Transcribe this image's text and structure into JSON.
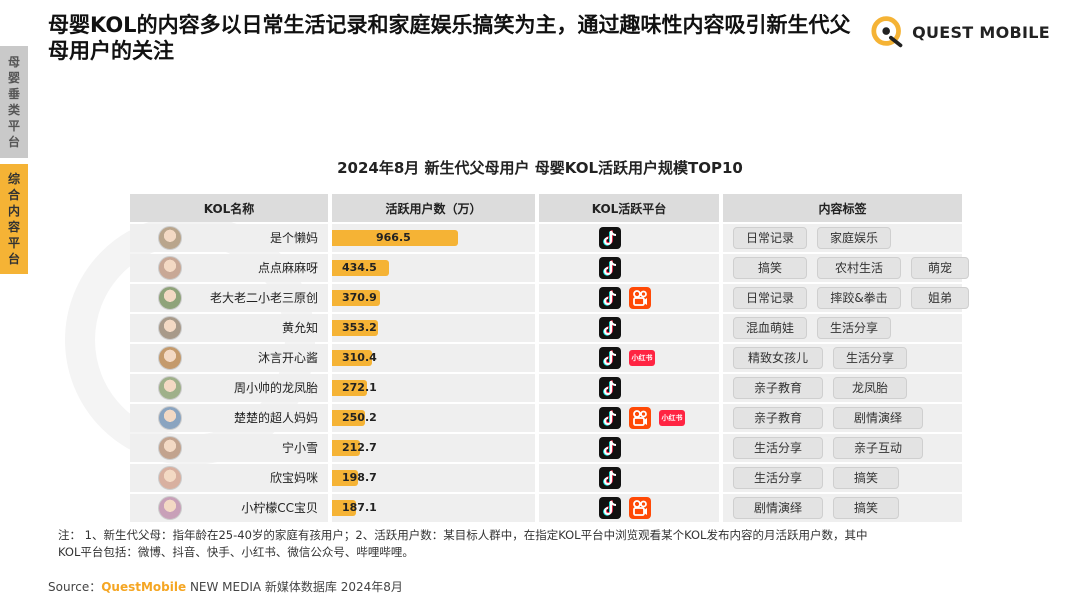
{
  "headline": "母婴KOL的内容多以日常生活记录和家庭娱乐搞笑为主，通过趣味性内容吸引新生代父母用户的关注",
  "logo_text": "QUEST MOBILE",
  "side_tabs": [
    {
      "label": "母婴垂类平台",
      "active": false
    },
    {
      "label": "综合内容平台",
      "active": true
    }
  ],
  "colors": {
    "accent": "#f5b335",
    "header_bg": "#dcdcdc",
    "row_bg": "#efefef",
    "tiktok": "#111111",
    "kuaishou": "#ff4906",
    "xiaohongshu": "#ff2442"
  },
  "chart_data": {
    "type": "table",
    "title": "2024年8月 新生代父母用户 母婴KOL活跃用户规模TOP10",
    "columns": [
      "KOL名称",
      "活跃用户数（万）",
      "KOL活跃平台",
      "内容标签"
    ],
    "max_value": 966.5,
    "rows": [
      {
        "name": "是个懒妈",
        "value": 966.5,
        "value_label": "966.5",
        "platforms": [
          "tiktok-icon"
        ],
        "tags": [
          "日常记录",
          "家庭娱乐"
        ]
      },
      {
        "name": "点点麻麻呀",
        "value": 434.5,
        "value_label": "434.5",
        "platforms": [
          "tiktok-icon"
        ],
        "tags": [
          "搞笑",
          "农村生活",
          "萌宠"
        ]
      },
      {
        "name": "老大老二小老三原创",
        "value": 370.9,
        "value_label": "370.9",
        "platforms": [
          "tiktok-icon",
          "kuaishou-icon"
        ],
        "tags": [
          "日常记录",
          "摔跤&拳击",
          "姐弟"
        ]
      },
      {
        "name": "黄允知",
        "value": 353.2,
        "value_label": "353.2",
        "platforms": [
          "tiktok-icon"
        ],
        "tags": [
          "混血萌娃",
          "生活分享"
        ]
      },
      {
        "name": "沐言开心酱",
        "value": 310.4,
        "value_label": "310.4",
        "platforms": [
          "tiktok-icon",
          "xiaohongshu-icon"
        ],
        "tags": [
          "精致女孩儿",
          "生活分享"
        ]
      },
      {
        "name": "周小帅的龙凤胎",
        "value": 272.1,
        "value_label": "272.1",
        "platforms": [
          "tiktok-icon"
        ],
        "tags": [
          "亲子教育",
          "龙凤胎"
        ]
      },
      {
        "name": "楚楚的超人妈妈",
        "value": 250.2,
        "value_label": "250.2",
        "platforms": [
          "tiktok-icon",
          "kuaishou-icon",
          "xiaohongshu-icon"
        ],
        "tags": [
          "亲子教育",
          "剧情演绎"
        ]
      },
      {
        "name": "宁小雪",
        "value": 212.7,
        "value_label": "212.7",
        "platforms": [
          "tiktok-icon"
        ],
        "tags": [
          "生活分享",
          "亲子互动"
        ]
      },
      {
        "name": "欣宝妈咪",
        "value": 198.7,
        "value_label": "198.7",
        "platforms": [
          "tiktok-icon"
        ],
        "tags": [
          "生活分享",
          "搞笑"
        ]
      },
      {
        "name": "小柠檬CC宝贝",
        "value": 187.1,
        "value_label": "187.1",
        "platforms": [
          "tiktok-icon",
          "kuaishou-icon"
        ],
        "tags": [
          "剧情演绎",
          "搞笑"
        ]
      }
    ],
    "xiaohongshu_label": "小红书"
  },
  "footnote_line1": "注：  1、新生代父母：指年龄在25-40岁的家庭有孩用户；2、活跃用户数：某目标人群中，在指定KOL平台中浏览观看某个KOL发布内容的月活跃用户数，其中",
  "footnote_line2": "KOL平台包括：微博、抖音、快手、小红书、微信公众号、哔哩哔哩。",
  "source_prefix": "Source：",
  "source_brand": "QuestMobile",
  "source_rest": " NEW MEDIA 新媒体数据库 2024年8月"
}
